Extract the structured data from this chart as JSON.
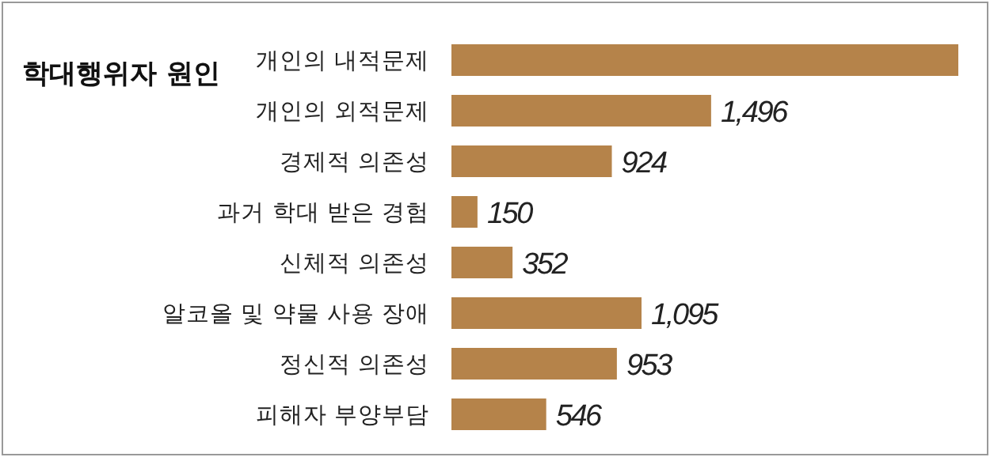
{
  "chart_data": {
    "type": "bar",
    "orientation": "horizontal",
    "title": "학대행위자 원인",
    "categories": [
      "개인의 내적문제",
      "개인의 외적문제",
      "경제적 의존성",
      "과거 학대 받은 경험",
      "신체적 의존성",
      "알코올 및 약물 사용 장애",
      "정신적 의존성",
      "피해자 부양부담"
    ],
    "values": [
      2920,
      1496,
      924,
      150,
      352,
      1095,
      953,
      546
    ],
    "value_labels": [
      null,
      "1,496",
      "924",
      "150",
      "352",
      "1,095",
      "953",
      "546"
    ],
    "color": "#b5834a",
    "grid": false,
    "legend": false
  }
}
